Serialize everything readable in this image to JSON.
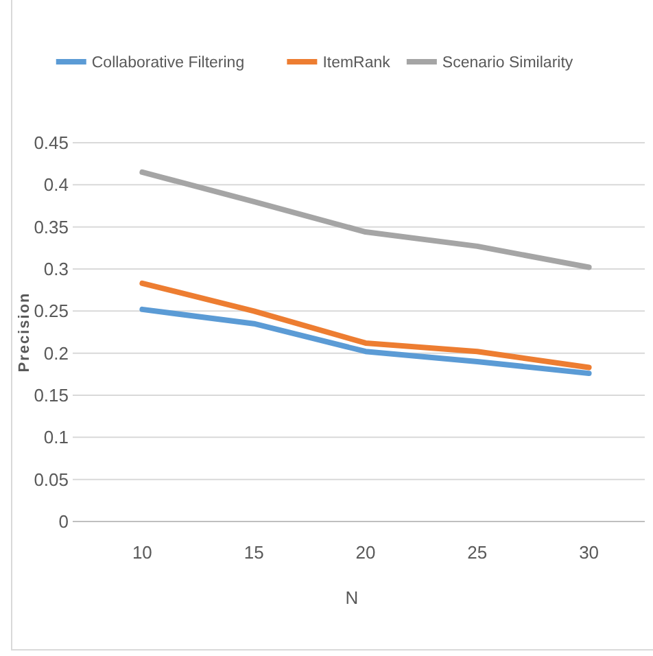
{
  "chart_data": {
    "type": "line",
    "xlabel": "N",
    "ylabel": "Precision",
    "categories": [
      "10",
      "15",
      "20",
      "25",
      "30"
    ],
    "series": [
      {
        "name": "Collaborative Filtering",
        "color": "#5b9bd5",
        "values": [
          0.252,
          0.235,
          0.202,
          0.19,
          0.176
        ]
      },
      {
        "name": "ItemRank",
        "color": "#ed7d31",
        "values": [
          0.283,
          0.25,
          0.212,
          0.202,
          0.183
        ]
      },
      {
        "name": "Scenario Similarity",
        "color": "#a5a5a5",
        "values": [
          0.415,
          0.38,
          0.344,
          0.327,
          0.302
        ]
      }
    ],
    "ylim": [
      0,
      0.45
    ],
    "yticks": [
      0,
      0.05,
      0.1,
      0.15,
      0.2,
      0.25,
      0.3,
      0.35,
      0.4,
      0.45
    ],
    "grid": "y",
    "legend": "top",
    "marker": "none",
    "line_style": "solid"
  }
}
